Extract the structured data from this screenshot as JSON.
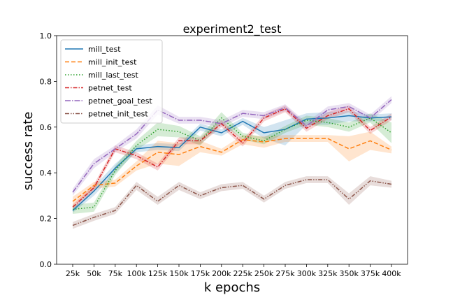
{
  "chart_data": {
    "type": "line",
    "title": "experiment2_test",
    "xlabel": "k epochs",
    "ylabel": "success rate",
    "categories": [
      "25k",
      "50k",
      "75k",
      "100k",
      "125k",
      "150k",
      "175k",
      "200k",
      "225k",
      "250k",
      "275k",
      "300k",
      "325k",
      "350k",
      "375k",
      "400k"
    ],
    "ylim": [
      0,
      1.0
    ],
    "yticks": [
      0.0,
      0.2,
      0.4,
      0.6,
      0.8,
      1.0
    ],
    "grid": false,
    "legend_position": "top-left",
    "series": [
      {
        "name": "mill_test",
        "color": "#1f77b4",
        "dash": "solid",
        "values": [
          0.235,
          0.32,
          0.42,
          0.505,
          0.515,
          0.51,
          0.6,
          0.575,
          0.625,
          0.575,
          0.59,
          0.635,
          0.64,
          0.65,
          0.64,
          0.645
        ],
        "lower": [
          0.225,
          0.3,
          0.4,
          0.49,
          0.5,
          0.495,
          0.585,
          0.56,
          0.61,
          0.55,
          0.52,
          0.61,
          0.61,
          0.625,
          0.625,
          0.63
        ],
        "upper": [
          0.245,
          0.34,
          0.44,
          0.52,
          0.53,
          0.525,
          0.615,
          0.59,
          0.64,
          0.6,
          0.63,
          0.66,
          0.665,
          0.67,
          0.655,
          0.66
        ]
      },
      {
        "name": "mill_init_test",
        "color": "#ff7f0e",
        "dash": "dashed",
        "values": [
          0.275,
          0.345,
          0.355,
          0.43,
          0.49,
          0.48,
          0.515,
          0.49,
          0.545,
          0.535,
          0.55,
          0.55,
          0.55,
          0.505,
          0.54,
          0.5
        ],
        "lower": [
          0.255,
          0.33,
          0.34,
          0.41,
          0.44,
          0.43,
          0.49,
          0.475,
          0.525,
          0.51,
          0.535,
          0.535,
          0.535,
          0.45,
          0.5,
          0.485
        ],
        "upper": [
          0.295,
          0.36,
          0.37,
          0.45,
          0.54,
          0.53,
          0.54,
          0.505,
          0.565,
          0.56,
          0.565,
          0.565,
          0.565,
          0.56,
          0.58,
          0.515
        ]
      },
      {
        "name": "mill_last_test",
        "color": "#2ca02c",
        "dash": "dotted",
        "values": [
          0.24,
          0.25,
          0.41,
          0.52,
          0.59,
          0.58,
          0.54,
          0.64,
          0.56,
          0.54,
          0.59,
          0.63,
          0.62,
          0.6,
          0.64,
          0.575
        ],
        "lower": [
          0.22,
          0.23,
          0.39,
          0.5,
          0.56,
          0.555,
          0.52,
          0.615,
          0.545,
          0.525,
          0.575,
          0.61,
          0.6,
          0.58,
          0.62,
          0.53
        ],
        "upper": [
          0.26,
          0.27,
          0.43,
          0.54,
          0.62,
          0.605,
          0.56,
          0.665,
          0.575,
          0.555,
          0.605,
          0.65,
          0.64,
          0.62,
          0.66,
          0.62
        ]
      },
      {
        "name": "petnet_test",
        "color": "#d62728",
        "dash": "dashdot",
        "values": [
          0.25,
          0.335,
          0.505,
          0.475,
          0.425,
          0.54,
          0.54,
          0.615,
          0.53,
          0.64,
          0.68,
          0.595,
          0.65,
          0.68,
          0.585,
          0.645
        ],
        "lower": [
          0.24,
          0.32,
          0.49,
          0.46,
          0.41,
          0.525,
          0.525,
          0.6,
          0.515,
          0.625,
          0.665,
          0.58,
          0.635,
          0.665,
          0.57,
          0.63
        ],
        "upper": [
          0.26,
          0.35,
          0.52,
          0.49,
          0.44,
          0.555,
          0.555,
          0.63,
          0.545,
          0.655,
          0.695,
          0.61,
          0.665,
          0.695,
          0.6,
          0.66
        ]
      },
      {
        "name": "petnet_goal_test",
        "color": "#9467bd",
        "dash": "dashdotted",
        "values": [
          0.315,
          0.44,
          0.505,
          0.57,
          0.675,
          0.63,
          0.63,
          0.615,
          0.66,
          0.65,
          0.685,
          0.605,
          0.675,
          0.69,
          0.64,
          0.72
        ],
        "lower": [
          0.3,
          0.42,
          0.49,
          0.55,
          0.655,
          0.615,
          0.615,
          0.6,
          0.645,
          0.635,
          0.67,
          0.59,
          0.66,
          0.675,
          0.625,
          0.705
        ],
        "upper": [
          0.33,
          0.46,
          0.52,
          0.59,
          0.695,
          0.645,
          0.645,
          0.63,
          0.675,
          0.665,
          0.7,
          0.62,
          0.69,
          0.705,
          0.655,
          0.735
        ]
      },
      {
        "name": "petnet_init_test",
        "color": "#8c564b",
        "dash": "dashdotdotted",
        "values": [
          0.17,
          0.205,
          0.235,
          0.345,
          0.275,
          0.345,
          0.3,
          0.335,
          0.345,
          0.285,
          0.345,
          0.37,
          0.37,
          0.285,
          0.365,
          0.35
        ],
        "lower": [
          0.155,
          0.19,
          0.22,
          0.325,
          0.26,
          0.325,
          0.285,
          0.32,
          0.33,
          0.27,
          0.33,
          0.355,
          0.355,
          0.26,
          0.345,
          0.335
        ],
        "upper": [
          0.185,
          0.22,
          0.25,
          0.36,
          0.295,
          0.36,
          0.315,
          0.35,
          0.36,
          0.3,
          0.36,
          0.385,
          0.385,
          0.31,
          0.385,
          0.365
        ]
      }
    ]
  }
}
